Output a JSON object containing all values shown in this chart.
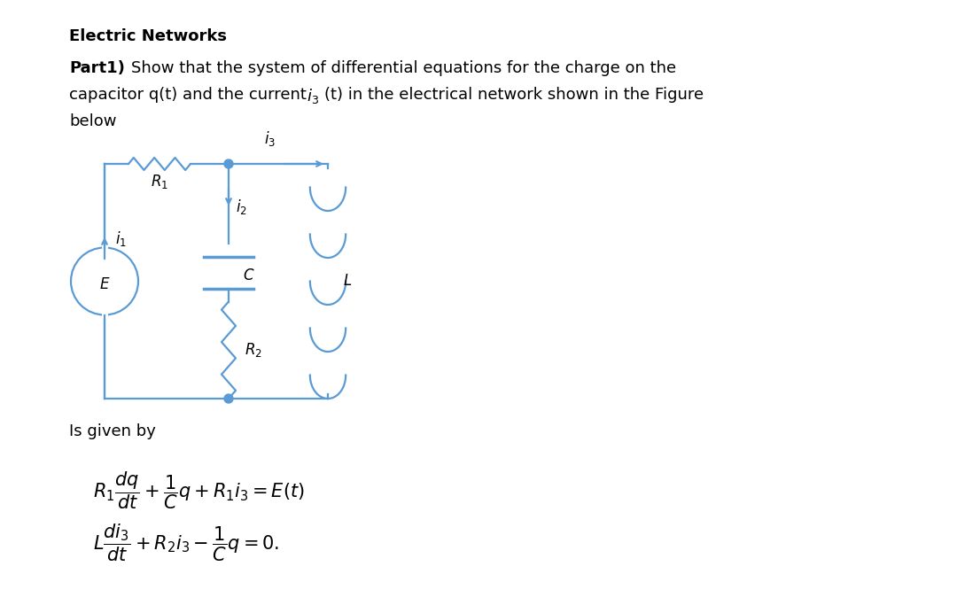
{
  "title": "Electric Networks",
  "circuit_color": "#5b9bd5",
  "background_color": "#ffffff",
  "text_color": "#000000",
  "eq1": "$R_1\\dfrac{dq}{dt} + \\dfrac{1}{C}q + R_1 i_3 = E(t)$",
  "eq2": "$L\\dfrac{di_3}{dt} + R_2 i_3 - \\dfrac{1}{C}q = 0.$"
}
